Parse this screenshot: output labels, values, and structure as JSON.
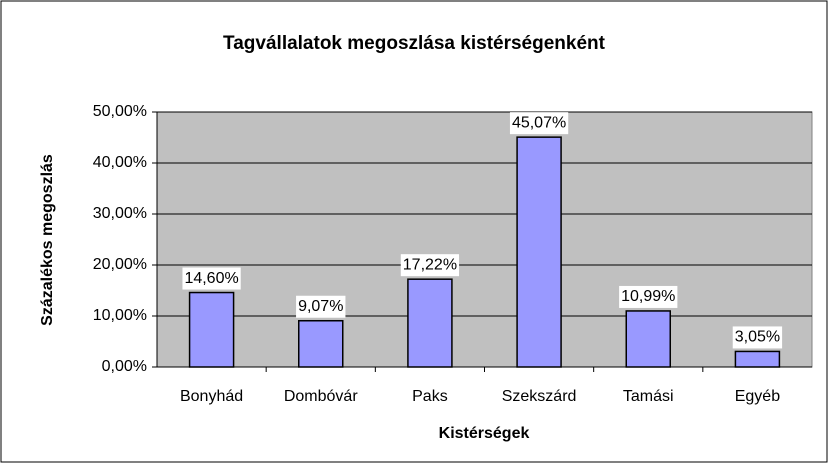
{
  "chart_data": {
    "type": "bar",
    "title": "Tagvállalatok megoszlása kistérségenként",
    "x_label": "Kistérségek",
    "y_label": "Százalékos megoszlás",
    "categories": [
      "Bonyhád",
      "Dombóvár",
      "Paks",
      "Szekszárd",
      "Tamási",
      "Egyéb"
    ],
    "values": [
      14.6,
      9.07,
      17.22,
      45.07,
      10.99,
      3.05
    ],
    "value_labels": [
      "14,60%",
      "9,07%",
      "17,22%",
      "45,07%",
      "10,99%",
      "3,05%"
    ],
    "color": "#9999ff",
    "ylim": [
      0,
      50
    ],
    "yticks": [
      {
        "value": 0,
        "label": "0,00%"
      },
      {
        "value": 10,
        "label": "10,00%"
      },
      {
        "value": 20,
        "label": "20,00%"
      },
      {
        "value": 30,
        "label": "30,00%"
      },
      {
        "value": 40,
        "label": "40,00%"
      },
      {
        "value": 50,
        "label": "50,00%"
      }
    ],
    "grid": true
  }
}
